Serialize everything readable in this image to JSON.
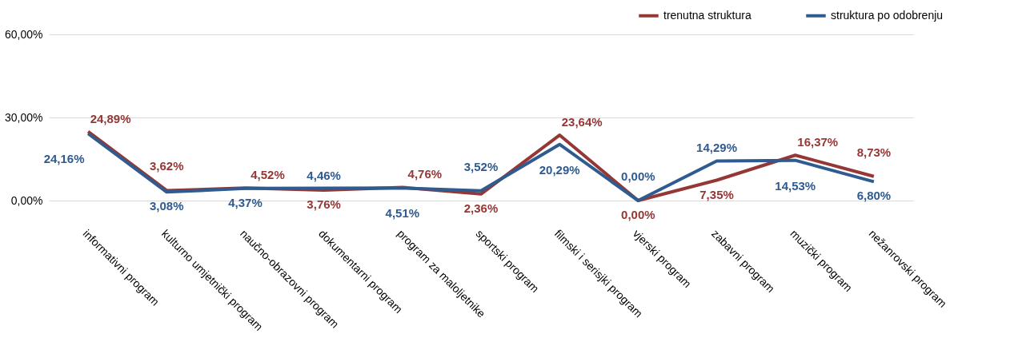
{
  "chart_data": {
    "type": "line",
    "categories": [
      "informativni program",
      "kulturno umjetnički program",
      "naučno-obrazovni program",
      "dokumentarni program",
      "program za maloljetnike",
      "sportski program",
      "filmski i serisjki program",
      "vjerski program",
      "zabavni program",
      "muzički program",
      "nežanrovski program"
    ],
    "series": [
      {
        "name": "trenutna struktura",
        "color": "#953735",
        "values": [
          24.89,
          3.62,
          4.52,
          3.76,
          4.76,
          2.36,
          23.64,
          0.0,
          7.35,
          16.37,
          8.73
        ],
        "value_labels": [
          "24,89%",
          "3,62%",
          "4,52%",
          "3,76%",
          "4,76%",
          "2,36%",
          "23,64%",
          "0,00%",
          "7,35%",
          "16,37%",
          "8,73%"
        ]
      },
      {
        "name": "struktura po odobrenju",
        "color": "#2f5b90",
        "values": [
          24.16,
          3.08,
          4.37,
          4.46,
          4.51,
          3.52,
          20.29,
          0.0,
          14.29,
          14.53,
          6.8
        ],
        "value_labels": [
          "24,16%",
          "3,08%",
          "4,37%",
          "4,46%",
          "4,51%",
          "3,52%",
          "20,29%",
          "0,00%",
          "14,29%",
          "14,53%",
          "6,80%"
        ]
      }
    ],
    "ylim": [
      0,
      60
    ],
    "yticks": [
      {
        "value": 0,
        "label": "0,00%"
      },
      {
        "value": 30,
        "label": "30,00%"
      },
      {
        "value": 60,
        "label": "60,00%"
      }
    ],
    "grid": "y",
    "legend": "top right",
    "marker": "none",
    "line_style": "solid"
  }
}
